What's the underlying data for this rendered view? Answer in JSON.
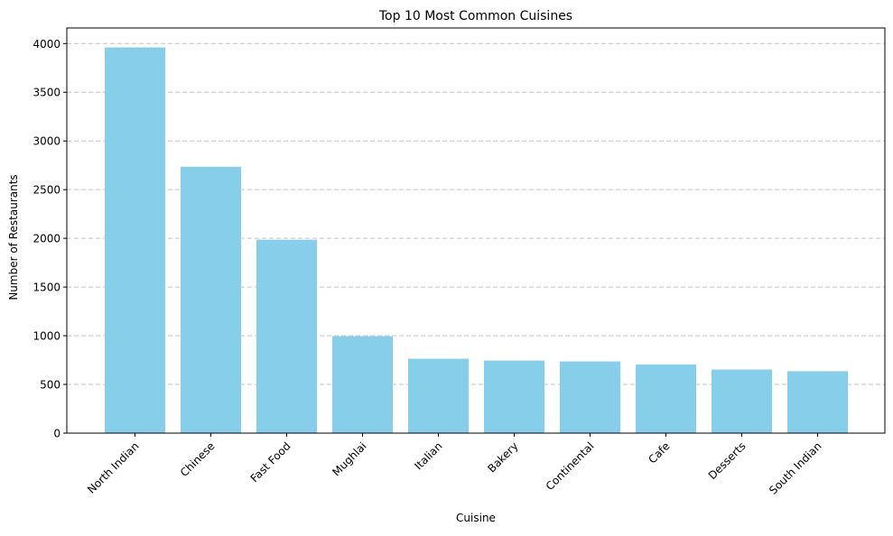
{
  "chart_data": {
    "type": "bar",
    "title": "Top 10 Most Common Cuisines",
    "xlabel": "Cuisine",
    "ylabel": "Number of Restaurants",
    "categories": [
      "North Indian",
      "Chinese",
      "Fast Food",
      "Mughlai",
      "Italian",
      "Bakery",
      "Continental",
      "Cafe",
      "Desserts",
      "South Indian"
    ],
    "values": [
      3960,
      2735,
      1986,
      995,
      764,
      745,
      736,
      705,
      653,
      636
    ],
    "ylim": [
      0,
      4160
    ],
    "yticks": [
      0,
      500,
      1000,
      1500,
      2000,
      2500,
      3000,
      3500,
      4000
    ],
    "grid": "y-dashed",
    "bar_color": "#87CEEB",
    "grid_color": "#c4c4c4"
  }
}
